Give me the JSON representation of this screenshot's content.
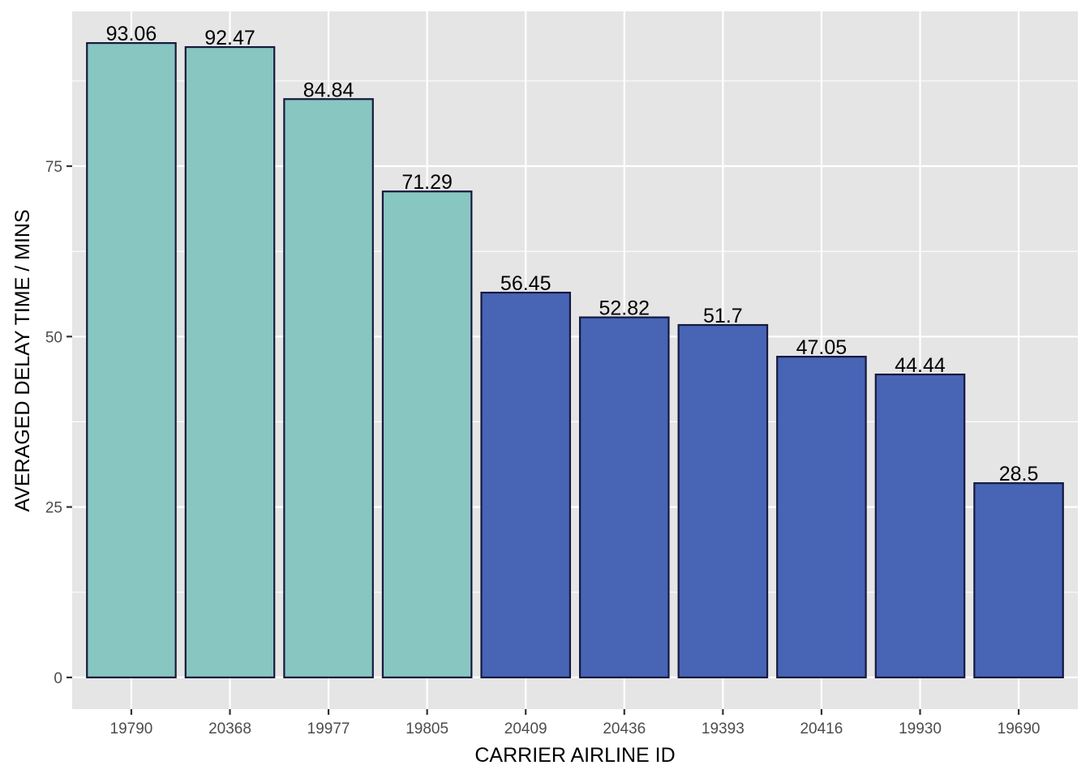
{
  "chart_data": {
    "type": "bar",
    "title": "",
    "xlabel": "CARRIER AIRLINE ID",
    "ylabel": "AVERAGED DELAY TIME / MINS",
    "categories": [
      "19790",
      "20368",
      "19977",
      "19805",
      "20409",
      "20436",
      "19393",
      "20416",
      "19930",
      "19690"
    ],
    "values": [
      93.06,
      92.47,
      84.84,
      71.29,
      56.45,
      52.82,
      51.7,
      47.05,
      44.44,
      28.5
    ],
    "value_labels": [
      "93.06",
      "92.47",
      "84.84",
      "71.29",
      "56.45",
      "52.82",
      "51.7",
      "47.05",
      "44.44",
      "28.5"
    ],
    "group": [
      "top",
      "top",
      "top",
      "top",
      "rest",
      "rest",
      "rest",
      "rest",
      "rest",
      "rest"
    ],
    "y_ticks": [
      0,
      25,
      50,
      75
    ],
    "y_tick_labels": [
      "0",
      "25",
      "50",
      "75"
    ],
    "ylim": [
      -4.65,
      97.71
    ],
    "grid": true,
    "legend": "none",
    "colors": {
      "panel": "#e5e5e5",
      "grid_major": "#ffffff",
      "bar_top": "#88c7c1",
      "bar_rest": "#4864b5",
      "bar_outline": "#16183f",
      "tick": "#333333"
    }
  }
}
